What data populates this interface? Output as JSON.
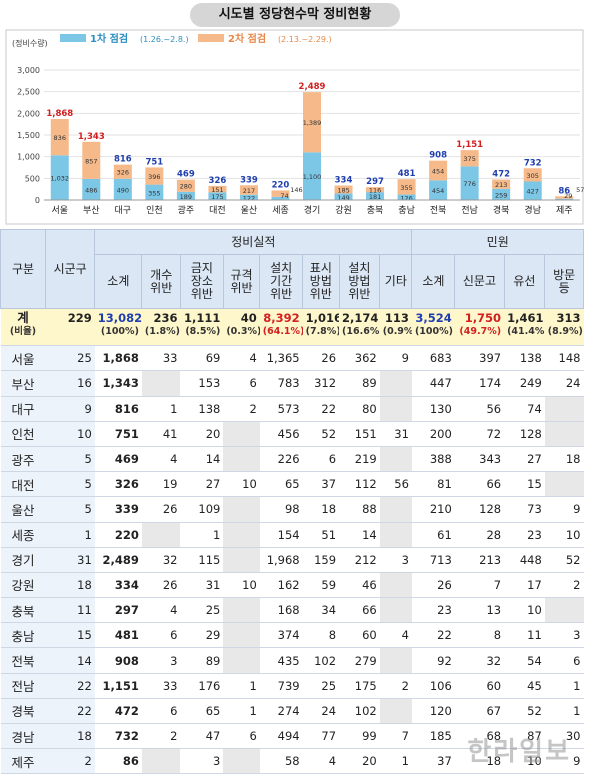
{
  "chart_data": {
    "type": "bar",
    "title": "시도별 정당현수막 정비현황",
    "ylabel": "(정비수량)",
    "ylim": [
      0,
      3000
    ],
    "yticks": [
      "0",
      "500",
      "1,000",
      "1,500",
      "2,000",
      "2,500",
      "3,000"
    ],
    "categories": [
      "서울",
      "부산",
      "대구",
      "인천",
      "광주",
      "대전",
      "울산",
      "세종",
      "경기",
      "강원",
      "충북",
      "충남",
      "전북",
      "전남",
      "경북",
      "경남",
      "제주"
    ],
    "series": [
      {
        "name": "1차 점검",
        "period": "(1.26.~2.8.)",
        "color": "#7cc6e6",
        "values": [
          1032,
          486,
          490,
          355,
          189,
          175,
          122,
          74,
          1100,
          149,
          181,
          126,
          454,
          776,
          259,
          427,
          29
        ]
      },
      {
        "name": "2차 점검",
        "period": "(2.13.~2.29.)",
        "color": "#f5b98a",
        "values": [
          836,
          857,
          326,
          396,
          280,
          151,
          217,
          146,
          1389,
          185,
          116,
          355,
          454,
          375,
          213,
          305,
          57
        ]
      }
    ],
    "totals": [
      1868,
      1343,
      816,
      751,
      469,
      326,
      339,
      220,
      2489,
      334,
      297,
      481,
      908,
      1151,
      472,
      732,
      86
    ],
    "total_labels": [
      "1,868",
      "1,343",
      "816",
      "751",
      "469",
      "326",
      "339",
      "220",
      "2,489",
      "334",
      "297",
      "481",
      "908",
      "1,151",
      "472",
      "732",
      "86"
    ],
    "segment_labels_1": [
      "1,032",
      "486",
      "490",
      "355",
      "189",
      "175",
      "122",
      "74",
      "1,100",
      "149",
      "181",
      "126",
      "454",
      "776",
      "259",
      "427",
      "29"
    ],
    "segment_labels_2": [
      "836",
      "857",
      "326",
      "396",
      "280",
      "151",
      "217",
      "146",
      "1,389",
      "185",
      "116",
      "355",
      "454",
      "375",
      "213",
      "305",
      "57"
    ],
    "legend_position": "top-left",
    "grid": true
  },
  "table": {
    "headers": {
      "region": "구분",
      "sigungu": "시군구",
      "group_fix": "정비실적",
      "group_complaint": "민원",
      "subtotal": "소계",
      "modify": "개수\n위반",
      "forbidden": "금지\n장소\n위반",
      "spec": "규격\n위반",
      "period": "설치\n기간\n위반",
      "display": "표시\n방법\n위반",
      "install": "설치\n방법\n위반",
      "other": "기타",
      "c_subtotal": "소계",
      "report": "신문고",
      "phone": "유선",
      "visit": "방문 등"
    },
    "total_row": {
      "region": "계",
      "region2": "(비율)",
      "sigungu": "229",
      "cells": [
        "13,082",
        "236",
        "1,111",
        "40",
        "8,392",
        "1,016",
        "2,174",
        "113",
        "3,524",
        "1,750",
        "1,461",
        "313"
      ],
      "pcts": [
        "(100%)",
        "(1.8%)",
        "(8.5%)",
        "(0.3%)",
        "(64.1%)",
        "(7.8%)",
        "(16.6%)",
        "(0.9%)",
        "(100%)",
        "(49.7%)",
        "(41.4%)",
        "(8.9%)"
      ]
    },
    "rows": [
      [
        "서울",
        "25",
        "1,868",
        "33",
        "69",
        "4",
        "1,365",
        "26",
        "362",
        "9",
        "683",
        "397",
        "138",
        "148"
      ],
      [
        "부산",
        "16",
        "1,343",
        "",
        "153",
        "6",
        "783",
        "312",
        "89",
        "",
        "447",
        "174",
        "249",
        "24"
      ],
      [
        "대구",
        "9",
        "816",
        "1",
        "138",
        "2",
        "573",
        "22",
        "80",
        "",
        "130",
        "56",
        "74",
        ""
      ],
      [
        "인천",
        "10",
        "751",
        "41",
        "20",
        "",
        "456",
        "52",
        "151",
        "31",
        "200",
        "72",
        "128",
        ""
      ],
      [
        "광주",
        "5",
        "469",
        "4",
        "14",
        "",
        "226",
        "6",
        "219",
        "",
        "388",
        "343",
        "27",
        "18"
      ],
      [
        "대전",
        "5",
        "326",
        "19",
        "27",
        "10",
        "65",
        "37",
        "112",
        "56",
        "81",
        "66",
        "15",
        ""
      ],
      [
        "울산",
        "5",
        "339",
        "26",
        "109",
        "",
        "98",
        "18",
        "88",
        "",
        "210",
        "128",
        "73",
        "9"
      ],
      [
        "세종",
        "1",
        "220",
        "",
        "1",
        "",
        "154",
        "51",
        "14",
        "",
        "61",
        "28",
        "23",
        "10"
      ],
      [
        "경기",
        "31",
        "2,489",
        "32",
        "115",
        "",
        "1,968",
        "159",
        "212",
        "3",
        "713",
        "213",
        "448",
        "52"
      ],
      [
        "강원",
        "18",
        "334",
        "26",
        "31",
        "10",
        "162",
        "59",
        "46",
        "",
        "26",
        "7",
        "17",
        "2"
      ],
      [
        "충북",
        "11",
        "297",
        "4",
        "25",
        "",
        "168",
        "34",
        "66",
        "",
        "23",
        "13",
        "10",
        ""
      ],
      [
        "충남",
        "15",
        "481",
        "6",
        "29",
        "",
        "374",
        "8",
        "60",
        "4",
        "22",
        "8",
        "11",
        "3"
      ],
      [
        "전북",
        "14",
        "908",
        "3",
        "89",
        "",
        "435",
        "102",
        "279",
        "",
        "92",
        "32",
        "54",
        "6"
      ],
      [
        "전남",
        "22",
        "1,151",
        "33",
        "176",
        "1",
        "739",
        "25",
        "175",
        "2",
        "106",
        "60",
        "45",
        "1"
      ],
      [
        "경북",
        "22",
        "472",
        "6",
        "65",
        "1",
        "274",
        "24",
        "102",
        "",
        "120",
        "67",
        "52",
        "1"
      ],
      [
        "경남",
        "18",
        "732",
        "2",
        "47",
        "6",
        "494",
        "77",
        "99",
        "7",
        "185",
        "68",
        "87",
        "30"
      ],
      [
        "제주",
        "2",
        "86",
        "",
        "3",
        "",
        "58",
        "4",
        "20",
        "1",
        "37",
        "18",
        "10",
        "9"
      ]
    ]
  },
  "watermark": "한라일보"
}
